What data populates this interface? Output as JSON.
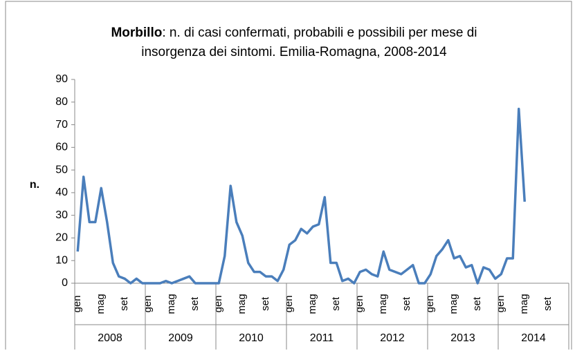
{
  "chart_data": {
    "type": "line",
    "title": [
      "Morbillo",
      ": n. di casi confermati, probabili e possibili per mese di",
      "insorgenza dei sintomi. Emilia-Romagna, 2008-2014"
    ],
    "y_label": "n.",
    "categories": [
      "gen",
      null,
      null,
      null,
      "mag",
      null,
      null,
      null,
      "set",
      null,
      null,
      null,
      "gen",
      null,
      null,
      null,
      "mag",
      null,
      null,
      null,
      "set",
      null,
      null,
      null,
      "gen",
      null,
      null,
      null,
      "mag",
      null,
      null,
      null,
      "set",
      null,
      null,
      null,
      "gen",
      null,
      null,
      null,
      "mag",
      null,
      null,
      null,
      "set",
      null,
      null,
      null,
      "gen",
      null,
      null,
      null,
      "mag",
      null,
      null,
      null,
      "set",
      null,
      null,
      null,
      "gen",
      null,
      null,
      null,
      "mag",
      null,
      null,
      null,
      "set",
      null,
      null,
      null,
      "gen",
      null,
      null,
      null,
      "mag",
      null,
      null,
      null,
      "set",
      null,
      null,
      null
    ],
    "year_groups": [
      "2008",
      "2009",
      "2010",
      "2011",
      "2012",
      "2013",
      "2014"
    ],
    "values": [
      14,
      47,
      27,
      27,
      42,
      27,
      9,
      3,
      2,
      0,
      2,
      0,
      0,
      0,
      0,
      1,
      0,
      1,
      2,
      3,
      0,
      0,
      0,
      0,
      0,
      12,
      43,
      27,
      21,
      9,
      5,
      5,
      3,
      3,
      1,
      6,
      17,
      19,
      24,
      22,
      25,
      26,
      38,
      9,
      9,
      1,
      2,
      0,
      5,
      6,
      4,
      3,
      14,
      6,
      5,
      4,
      6,
      8,
      0,
      0,
      4,
      12,
      15,
      19,
      11,
      12,
      7,
      8,
      0,
      7,
      6,
      2,
      4,
      11,
      11,
      77,
      36,
      null,
      null,
      null,
      null,
      null,
      null,
      null
    ],
    "color": "#4a7ebb",
    "ylim": [
      0,
      90
    ],
    "yticks": [
      0,
      10,
      20,
      30,
      40,
      50,
      60,
      70,
      80,
      90
    ],
    "grid": false
  }
}
